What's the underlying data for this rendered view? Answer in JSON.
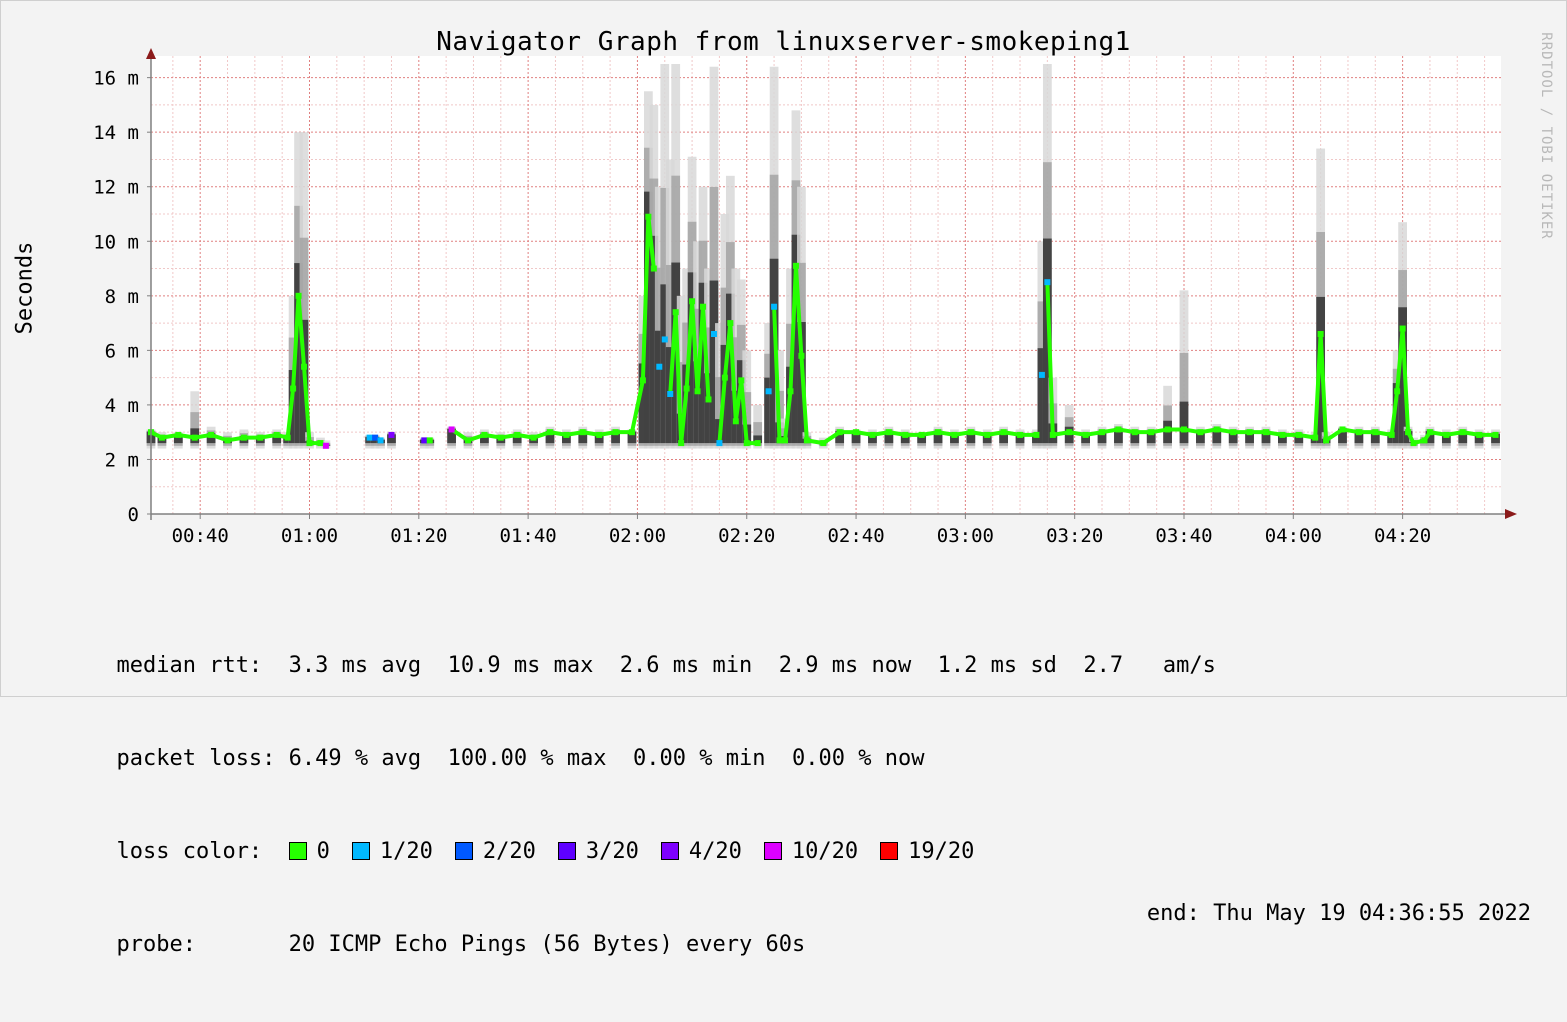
{
  "chart_data": {
    "type": "line",
    "title": "Navigator Graph from linuxserver-smokeping1",
    "ylabel": "Seconds",
    "watermark": "RRDTOOL / TOBI OETIKER",
    "ylim": [
      0,
      0.0165
    ],
    "y_ticks": [
      {
        "value": 0,
        "label": "0"
      },
      {
        "value": 0.002,
        "label": "2 m"
      },
      {
        "value": 0.004,
        "label": "4 m"
      },
      {
        "value": 0.006,
        "label": "6 m"
      },
      {
        "value": 0.008,
        "label": "8 m"
      },
      {
        "value": 0.01,
        "label": "10 m"
      },
      {
        "value": 0.012,
        "label": "12 m"
      },
      {
        "value": 0.014,
        "label": "14 m"
      },
      {
        "value": 0.016,
        "label": "16 m"
      }
    ],
    "x_range": [
      "00:31",
      "04:38"
    ],
    "x_ticks": [
      "00:40",
      "01:00",
      "01:20",
      "01:40",
      "02:00",
      "02:20",
      "02:40",
      "03:00",
      "03:20",
      "03:40",
      "04:00",
      "04:20"
    ],
    "grid": true,
    "series": [
      {
        "points": [
          [
            "00:31",
            0.003,
            0.0031,
            0
          ],
          [
            "00:33",
            0.0028,
            0.003,
            0
          ],
          [
            "00:36",
            0.0029,
            0.003,
            0
          ],
          [
            "00:39",
            0.0028,
            0.0045,
            0
          ],
          [
            "00:42",
            0.0029,
            0.0032,
            0
          ],
          [
            "00:45",
            0.0027,
            0.003,
            0
          ],
          [
            "00:48",
            0.0028,
            0.0031,
            0
          ],
          [
            "00:51",
            0.0028,
            0.003,
            0
          ],
          [
            "00:54",
            0.0029,
            0.0031,
            0
          ],
          [
            "00:56",
            0.0028,
            0.003,
            0
          ],
          [
            "00:57",
            0.0046,
            0.008,
            0
          ],
          [
            "00:58",
            0.008,
            0.014,
            0
          ],
          [
            "00:59",
            0.0054,
            0.014,
            0
          ],
          [
            "01:00",
            0.0026,
            0.003,
            0
          ],
          [
            "01:02",
            0.0026,
            0.0028,
            0
          ],
          [
            "01:03",
            0.0025,
            0.0027,
            10
          ],
          [
            "01:11",
            0.0028,
            0.0029,
            1
          ],
          [
            "01:12",
            0.0028,
            0.0029,
            2
          ],
          [
            "01:13",
            0.0027,
            0.0028,
            1
          ],
          [
            "01:15",
            0.0029,
            0.003,
            4
          ],
          [
            "01:21",
            0.0027,
            0.0028,
            3
          ],
          [
            "01:22",
            0.0027,
            0.0028,
            0
          ],
          [
            "01:26",
            0.0031,
            0.0032,
            10
          ],
          [
            "01:29",
            0.0027,
            0.003,
            0
          ],
          [
            "01:32",
            0.0029,
            0.0031,
            0
          ],
          [
            "01:35",
            0.0028,
            0.003,
            0
          ],
          [
            "01:38",
            0.0029,
            0.0031,
            0
          ],
          [
            "01:41",
            0.0028,
            0.003,
            0
          ],
          [
            "01:44",
            0.003,
            0.0032,
            0
          ],
          [
            "01:47",
            0.0029,
            0.0031,
            0
          ],
          [
            "01:50",
            0.003,
            0.0032,
            0
          ],
          [
            "01:53",
            0.0029,
            0.0031,
            0
          ],
          [
            "01:56",
            0.003,
            0.0032,
            0
          ],
          [
            "01:59",
            0.003,
            0.0031,
            0
          ],
          [
            "02:01",
            0.0049,
            0.008,
            0
          ],
          [
            "02:02",
            0.0109,
            0.0155,
            0
          ],
          [
            "02:03",
            0.009,
            0.015,
            0
          ],
          [
            "02:04",
            0.0054,
            0.012,
            1
          ],
          [
            "02:05",
            0.0064,
            0.0165,
            1
          ],
          [
            "02:06",
            0.0044,
            0.013,
            1
          ],
          [
            "02:07",
            0.0074,
            0.0165,
            0
          ],
          [
            "02:08",
            0.0026,
            0.008,
            0
          ],
          [
            "02:09",
            0.0046,
            0.009,
            0
          ],
          [
            "02:10",
            0.0078,
            0.0131,
            0
          ],
          [
            "02:11",
            0.0045,
            0.01,
            0
          ],
          [
            "02:12",
            0.0076,
            0.012,
            0
          ],
          [
            "02:13",
            0.0042,
            0.009,
            0
          ],
          [
            "02:14",
            0.0066,
            0.0164,
            1
          ],
          [
            "02:15",
            0.0026,
            0.007,
            1
          ],
          [
            "02:16",
            0.005,
            0.011,
            0
          ],
          [
            "02:17",
            0.007,
            0.0124,
            0
          ],
          [
            "02:18",
            0.0034,
            0.009,
            0
          ],
          [
            "02:19",
            0.0049,
            0.0086,
            0
          ],
          [
            "02:20",
            0.0026,
            0.006,
            0
          ],
          [
            "02:22",
            0.0026,
            0.004,
            0
          ],
          [
            "02:24",
            0.0045,
            0.007,
            1
          ],
          [
            "02:25",
            0.0076,
            0.0164,
            1
          ],
          [
            "02:26",
            0.0027,
            0.006,
            0
          ],
          [
            "02:27",
            0.0027,
            0.0035,
            0
          ],
          [
            "02:28",
            0.0045,
            0.009,
            0
          ],
          [
            "02:29",
            0.0091,
            0.0148,
            0
          ],
          [
            "02:30",
            0.0058,
            0.012,
            0
          ],
          [
            "02:31",
            0.0027,
            0.003,
            0
          ],
          [
            "02:34",
            0.0026,
            0.0028,
            0
          ],
          [
            "02:37",
            0.003,
            0.0032,
            0
          ],
          [
            "02:40",
            0.003,
            0.0031,
            0
          ],
          [
            "02:43",
            0.0029,
            0.0031,
            0
          ],
          [
            "02:46",
            0.003,
            0.0032,
            0
          ],
          [
            "02:49",
            0.0029,
            0.0031,
            0
          ],
          [
            "02:52",
            0.0029,
            0.003,
            0
          ],
          [
            "02:55",
            0.003,
            0.0032,
            0
          ],
          [
            "02:58",
            0.0029,
            0.0031,
            0
          ],
          [
            "03:01",
            0.003,
            0.0032,
            0
          ],
          [
            "03:04",
            0.0029,
            0.0031,
            0
          ],
          [
            "03:07",
            0.003,
            0.0032,
            0
          ],
          [
            "03:10",
            0.0029,
            0.0031,
            0
          ],
          [
            "03:13",
            0.0029,
            0.0031,
            0
          ],
          [
            "03:14",
            0.0051,
            0.01,
            1
          ],
          [
            "03:15",
            0.0085,
            0.0165,
            1
          ],
          [
            "03:16",
            0.0029,
            0.005,
            0
          ],
          [
            "03:19",
            0.003,
            0.004,
            0
          ],
          [
            "03:22",
            0.0029,
            0.0031,
            0
          ],
          [
            "03:25",
            0.003,
            0.0032,
            0
          ],
          [
            "03:28",
            0.0031,
            0.0033,
            0
          ],
          [
            "03:31",
            0.003,
            0.0032,
            0
          ],
          [
            "03:34",
            0.003,
            0.0032,
            0
          ],
          [
            "03:37",
            0.0031,
            0.0047,
            0
          ],
          [
            "03:40",
            0.0031,
            0.0082,
            0
          ],
          [
            "03:43",
            0.003,
            0.0032,
            0
          ],
          [
            "03:46",
            0.0031,
            0.0033,
            0
          ],
          [
            "03:49",
            0.003,
            0.0032,
            0
          ],
          [
            "03:52",
            0.003,
            0.0032,
            0
          ],
          [
            "03:55",
            0.003,
            0.0032,
            0
          ],
          [
            "03:58",
            0.0029,
            0.0031,
            0
          ],
          [
            "04:01",
            0.0029,
            0.0031,
            0
          ],
          [
            "04:04",
            0.0028,
            0.003,
            0
          ],
          [
            "04:05",
            0.0066,
            0.0134,
            0
          ],
          [
            "04:06",
            0.0027,
            0.003,
            0
          ],
          [
            "04:09",
            0.0031,
            0.0032,
            0
          ],
          [
            "04:12",
            0.003,
            0.0032,
            0
          ],
          [
            "04:15",
            0.003,
            0.0032,
            0
          ],
          [
            "04:18",
            0.0029,
            0.0031,
            0
          ],
          [
            "04:19",
            0.0045,
            0.006,
            0
          ],
          [
            "04:20",
            0.0068,
            0.0107,
            0
          ],
          [
            "04:21",
            0.003,
            0.0032,
            0
          ],
          [
            "04:22",
            0.0026,
            0.0028,
            0
          ],
          [
            "04:24",
            0.0027,
            0.0029,
            0
          ],
          [
            "04:25",
            0.003,
            0.0032,
            0
          ],
          [
            "04:28",
            0.0029,
            0.0031,
            0
          ],
          [
            "04:31",
            0.003,
            0.0032,
            0
          ],
          [
            "04:34",
            0.0029,
            0.0031,
            0
          ],
          [
            "04:37",
            0.0029,
            0.0031,
            0
          ]
        ]
      }
    ]
  },
  "legend": {
    "median": "median rtt:  3.3 ms avg  10.9 ms max  2.6 ms min  2.9 ms now  1.2 ms sd  2.7   am/s",
    "loss": "packet loss: 6.49 % avg  100.00 % max  0.00 % min  0.00 % now",
    "loss_label": "loss color:  ",
    "loss_colors": [
      {
        "label": "0",
        "color": "#26ff00"
      },
      {
        "label": "1/20",
        "color": "#00b8ff"
      },
      {
        "label": "2/20",
        "color": "#0059ff"
      },
      {
        "label": "3/20",
        "color": "#5e00ff"
      },
      {
        "label": "4/20",
        "color": "#7e00ff"
      },
      {
        "label": "10/20",
        "color": "#dd00ff"
      },
      {
        "label": "19/20",
        "color": "#ff0000"
      }
    ],
    "probe": "probe:       20 ICMP Echo Pings (56 Bytes) every 60s",
    "end": "end: Thu May 19 04:36:55 2022"
  },
  "colors": {
    "grid_major": "#e08080",
    "grid_minor": "#f0c8c8",
    "axis": "#808080",
    "arrow": "#8b1a1a",
    "smoke_light": "#d8d8d8",
    "smoke_mid": "#a0a0a0",
    "smoke_dark": "#303030",
    "plot_bg": "#ffffff"
  }
}
